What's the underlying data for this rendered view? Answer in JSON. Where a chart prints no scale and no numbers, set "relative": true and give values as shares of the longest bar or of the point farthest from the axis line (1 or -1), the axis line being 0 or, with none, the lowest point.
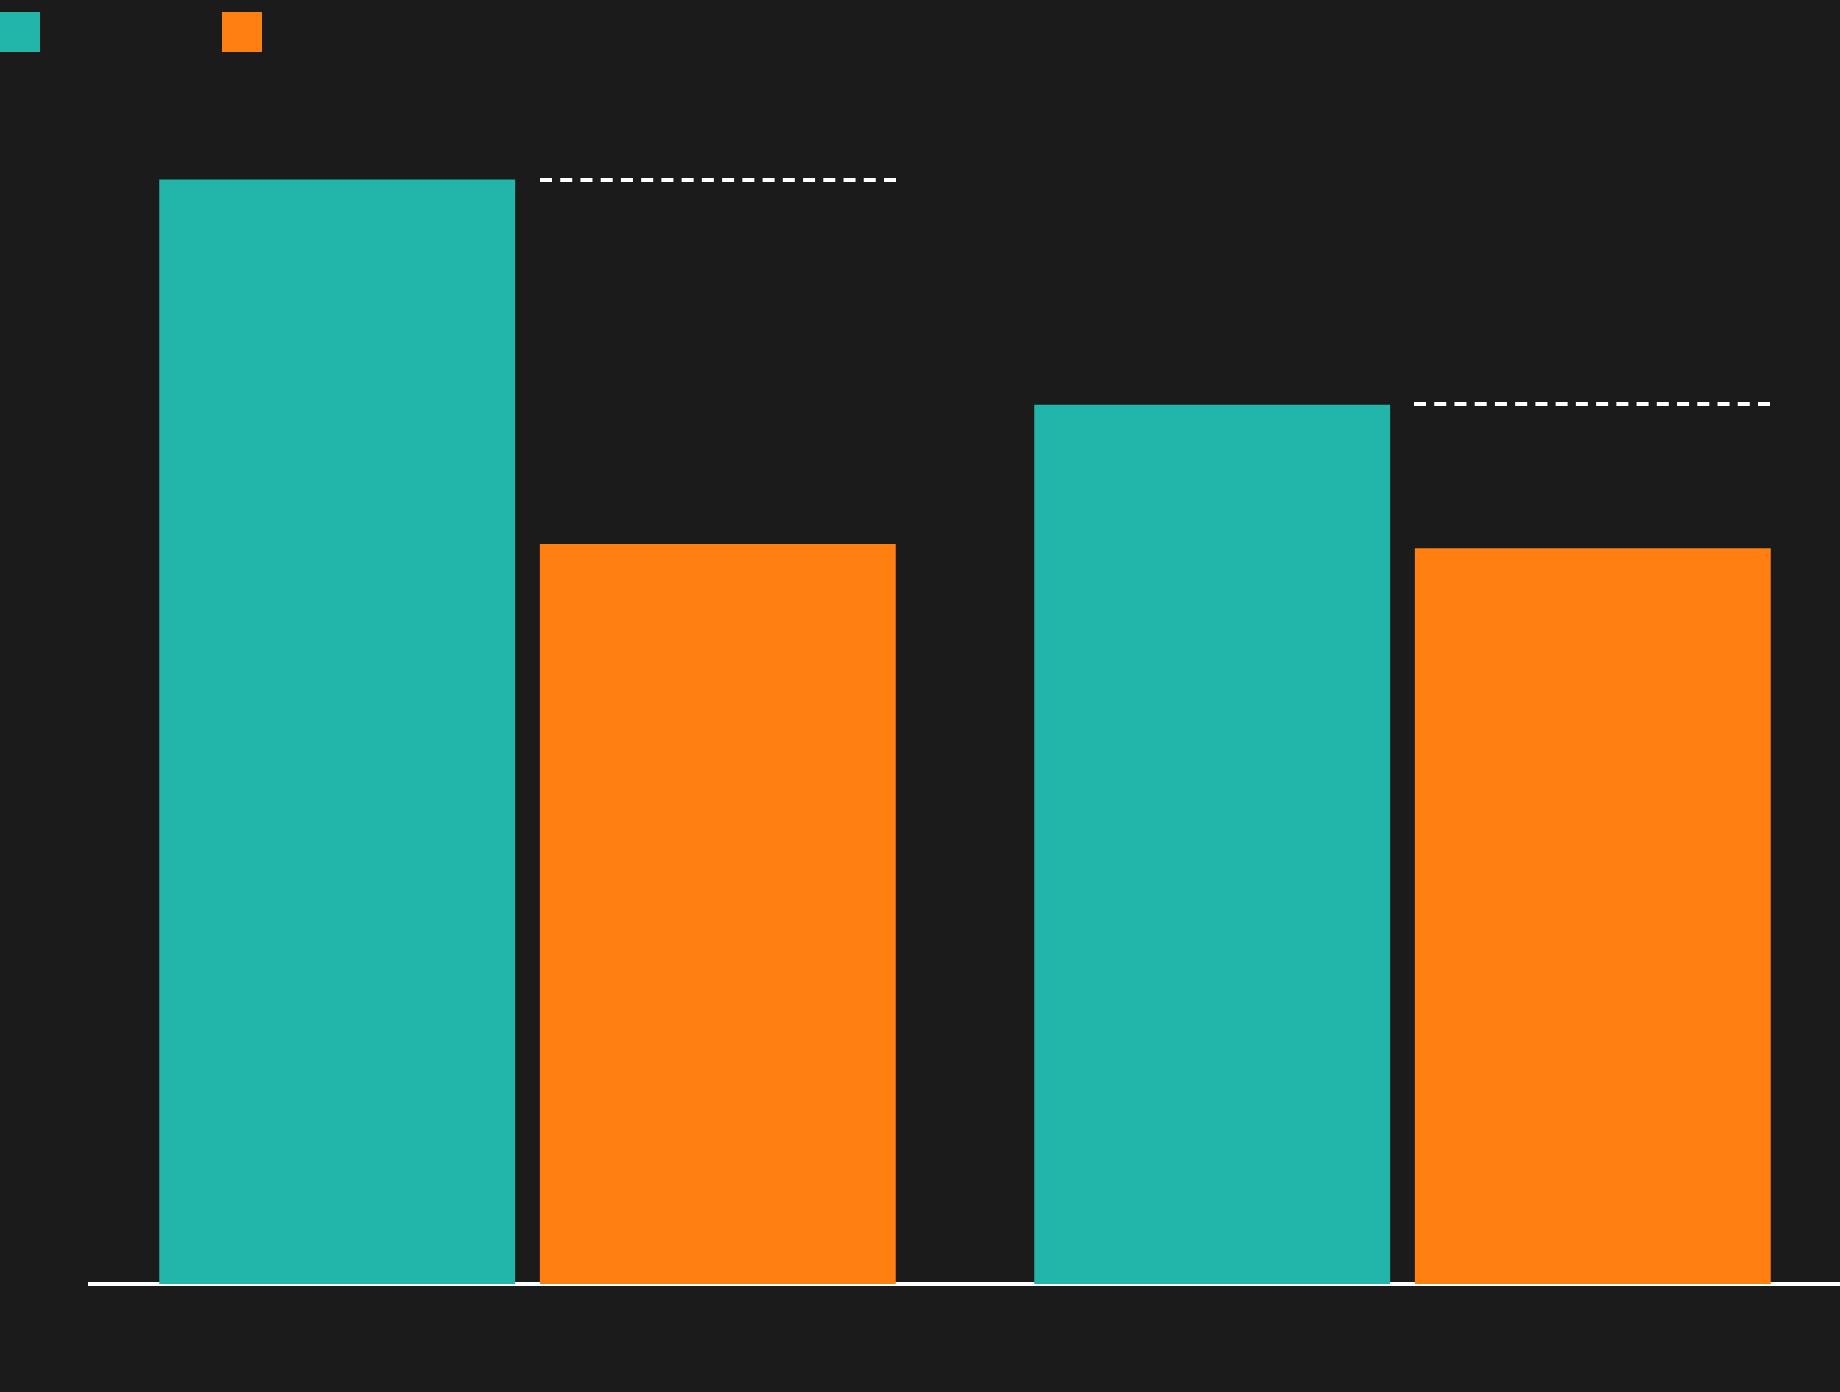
{
  "chart_data": {
    "type": "bar",
    "relative": true,
    "categories": [
      null,
      null
    ],
    "series": [
      {
        "color": "#22b5aa",
        "values": [
          1,
          0.796
        ]
      },
      {
        "color": "#ff8011",
        "values": [
          0.67,
          0.666
        ]
      }
    ]
  }
}
